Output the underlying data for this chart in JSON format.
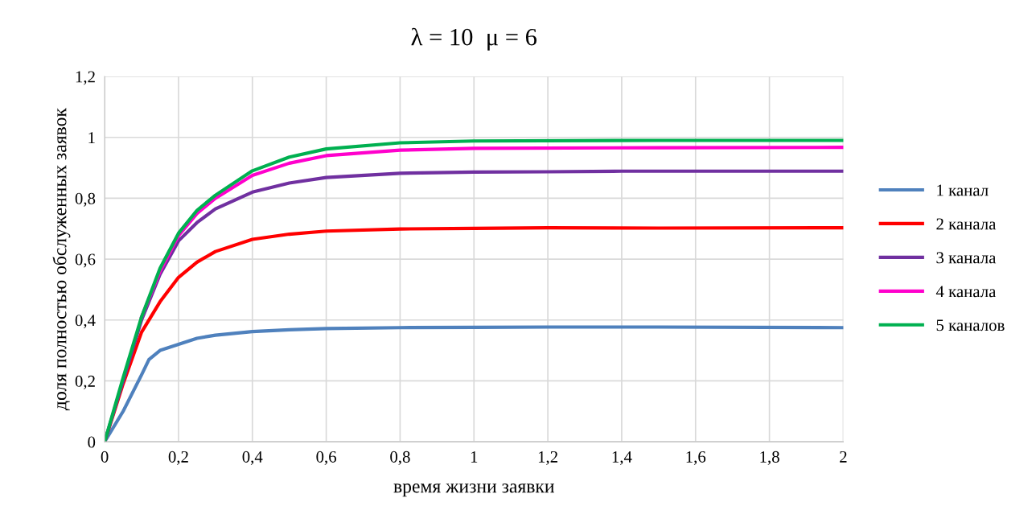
{
  "chart_data": {
    "type": "line",
    "title": "λ = 10  μ = 6",
    "xlabel": "время жизни заявки",
    "ylabel": "доля полностью обслуженных заявок",
    "xlim": [
      0,
      2
    ],
    "ylim": [
      0,
      1.2
    ],
    "xticks": [
      0,
      {
        "value": 0.2,
        "label": "0,2"
      },
      {
        "value": 0.4,
        "label": "0,4"
      },
      {
        "value": 0.6,
        "label": "0,6"
      },
      {
        "value": 0.8,
        "label": "0,8"
      },
      1,
      {
        "value": 1.2,
        "label": "1,2"
      },
      {
        "value": 1.4,
        "label": "1,4"
      },
      {
        "value": 1.6,
        "label": "1,6"
      },
      {
        "value": 1.8,
        "label": "1,8"
      },
      2
    ],
    "yticks": [
      0,
      {
        "value": 0.2,
        "label": "0,2"
      },
      {
        "value": 0.4,
        "label": "0,4"
      },
      {
        "value": 0.6,
        "label": "0,6"
      },
      {
        "value": 0.8,
        "label": "0,8"
      },
      1,
      {
        "value": 1.2,
        "label": "1,2"
      }
    ],
    "grid": true,
    "legend": "right",
    "marker": "none",
    "line_style": "solid",
    "series": [
      {
        "name": "1 канал",
        "color": "#4f81bd",
        "x": [
          0,
          0.05,
          0.1,
          0.12,
          0.15,
          0.2,
          0.25,
          0.3,
          0.4,
          0.5,
          0.6,
          0.8,
          1.0,
          1.2,
          1.5,
          2
        ],
        "values": [
          0,
          0.1,
          0.22,
          0.27,
          0.3,
          0.32,
          0.34,
          0.35,
          0.362,
          0.368,
          0.372,
          0.375,
          0.376,
          0.377,
          0.377,
          0.375
        ]
      },
      {
        "name": "2 канала",
        "color": "#ff0000",
        "x": [
          0,
          0.05,
          0.1,
          0.15,
          0.2,
          0.25,
          0.3,
          0.4,
          0.5,
          0.6,
          0.8,
          1,
          1.2,
          1.5,
          2
        ],
        "values": [
          0,
          0.19,
          0.36,
          0.46,
          0.54,
          0.59,
          0.625,
          0.665,
          0.682,
          0.692,
          0.699,
          0.701,
          0.703,
          0.702,
          0.703
        ]
      },
      {
        "name": "3 канала",
        "color": "#7030a0",
        "x": [
          0,
          0.05,
          0.1,
          0.15,
          0.2,
          0.25,
          0.3,
          0.4,
          0.5,
          0.6,
          0.8,
          1,
          1.2,
          1.4,
          2
        ],
        "values": [
          0,
          0.2,
          0.4,
          0.55,
          0.66,
          0.72,
          0.765,
          0.82,
          0.85,
          0.868,
          0.882,
          0.886,
          0.887,
          0.889,
          0.889
        ]
      },
      {
        "name": "4 канала",
        "color": "#ff00cc",
        "x": [
          0.1,
          0.15,
          0.2,
          0.25,
          0.3,
          0.4,
          0.5,
          0.6,
          0.8,
          1,
          1.5,
          2
        ],
        "values": [
          0.41,
          0.56,
          0.677,
          0.75,
          0.8,
          0.875,
          0.915,
          0.94,
          0.958,
          0.964,
          0.966,
          0.967
        ]
      },
      {
        "name": "5 каналов",
        "color": "#00b050",
        "x": [
          0,
          0.05,
          0.1,
          0.15,
          0.2,
          0.25,
          0.3,
          0.4,
          0.5,
          0.6,
          0.8,
          1,
          1.5,
          2
        ],
        "values": [
          0,
          0.21,
          0.41,
          0.57,
          0.685,
          0.76,
          0.81,
          0.89,
          0.935,
          0.962,
          0.982,
          0.988,
          0.99,
          0.99
        ]
      }
    ]
  }
}
